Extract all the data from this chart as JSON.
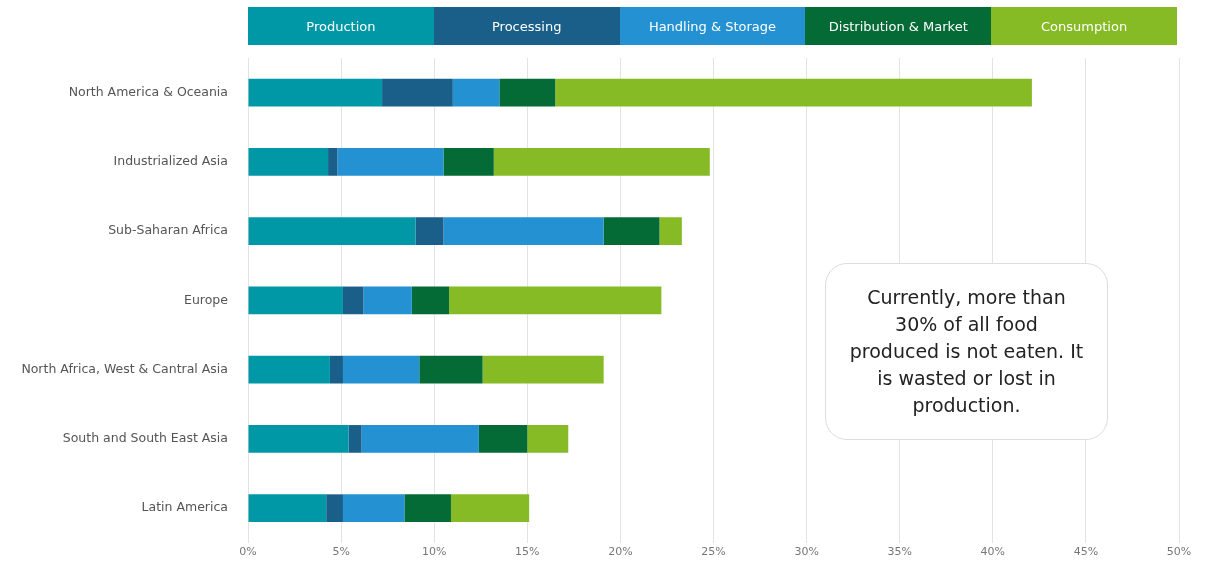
{
  "chart_data": {
    "type": "bar",
    "orientation": "horizontal",
    "stacked": true,
    "categories": [
      "North America & Oceania",
      "Industrialized Asia",
      "Sub-Saharan Africa",
      "Europe",
      "North Africa, West & Cantral Asia",
      "South and South East Asia",
      "Latin America"
    ],
    "series": [
      {
        "name": "Production",
        "color": "#0097a7",
        "values": [
          7.2,
          4.3,
          9.0,
          5.1,
          4.4,
          5.4,
          4.2
        ]
      },
      {
        "name": "Processing",
        "color": "#1a5f8a",
        "values": [
          3.8,
          0.5,
          1.5,
          1.1,
          0.7,
          0.7,
          0.9
        ]
      },
      {
        "name": "Handling & Storage",
        "color": "#2491d3",
        "values": [
          2.5,
          5.7,
          8.6,
          2.6,
          4.1,
          6.3,
          3.3
        ]
      },
      {
        "name": "Distribution & Market",
        "color": "#046a36",
        "values": [
          3.0,
          2.7,
          3.0,
          2.0,
          3.4,
          2.6,
          2.5
        ]
      },
      {
        "name": "Consumption",
        "color": "#86bb26",
        "values": [
          25.6,
          11.6,
          1.2,
          11.4,
          6.5,
          2.2,
          4.2
        ]
      }
    ],
    "xlim": [
      0,
      50
    ],
    "xticks": [
      {
        "value": 0,
        "label": "0%"
      },
      {
        "value": 5,
        "label": "5%"
      },
      {
        "value": 10,
        "label": "10%"
      },
      {
        "value": 15,
        "label": "15%"
      },
      {
        "value": 20,
        "label": "20%"
      },
      {
        "value": 25,
        "label": "25%"
      },
      {
        "value": 30,
        "label": "30%"
      },
      {
        "value": 35,
        "label": "35%"
      },
      {
        "value": 40,
        "label": "40%"
      },
      {
        "value": 45,
        "label": "45%"
      },
      {
        "value": 50,
        "label": "50%"
      }
    ],
    "grid": "x",
    "legend": "top",
    "annotations": [
      "Currently, more than 30% of all food produced is not eaten. It is wasted or lost in production."
    ]
  }
}
